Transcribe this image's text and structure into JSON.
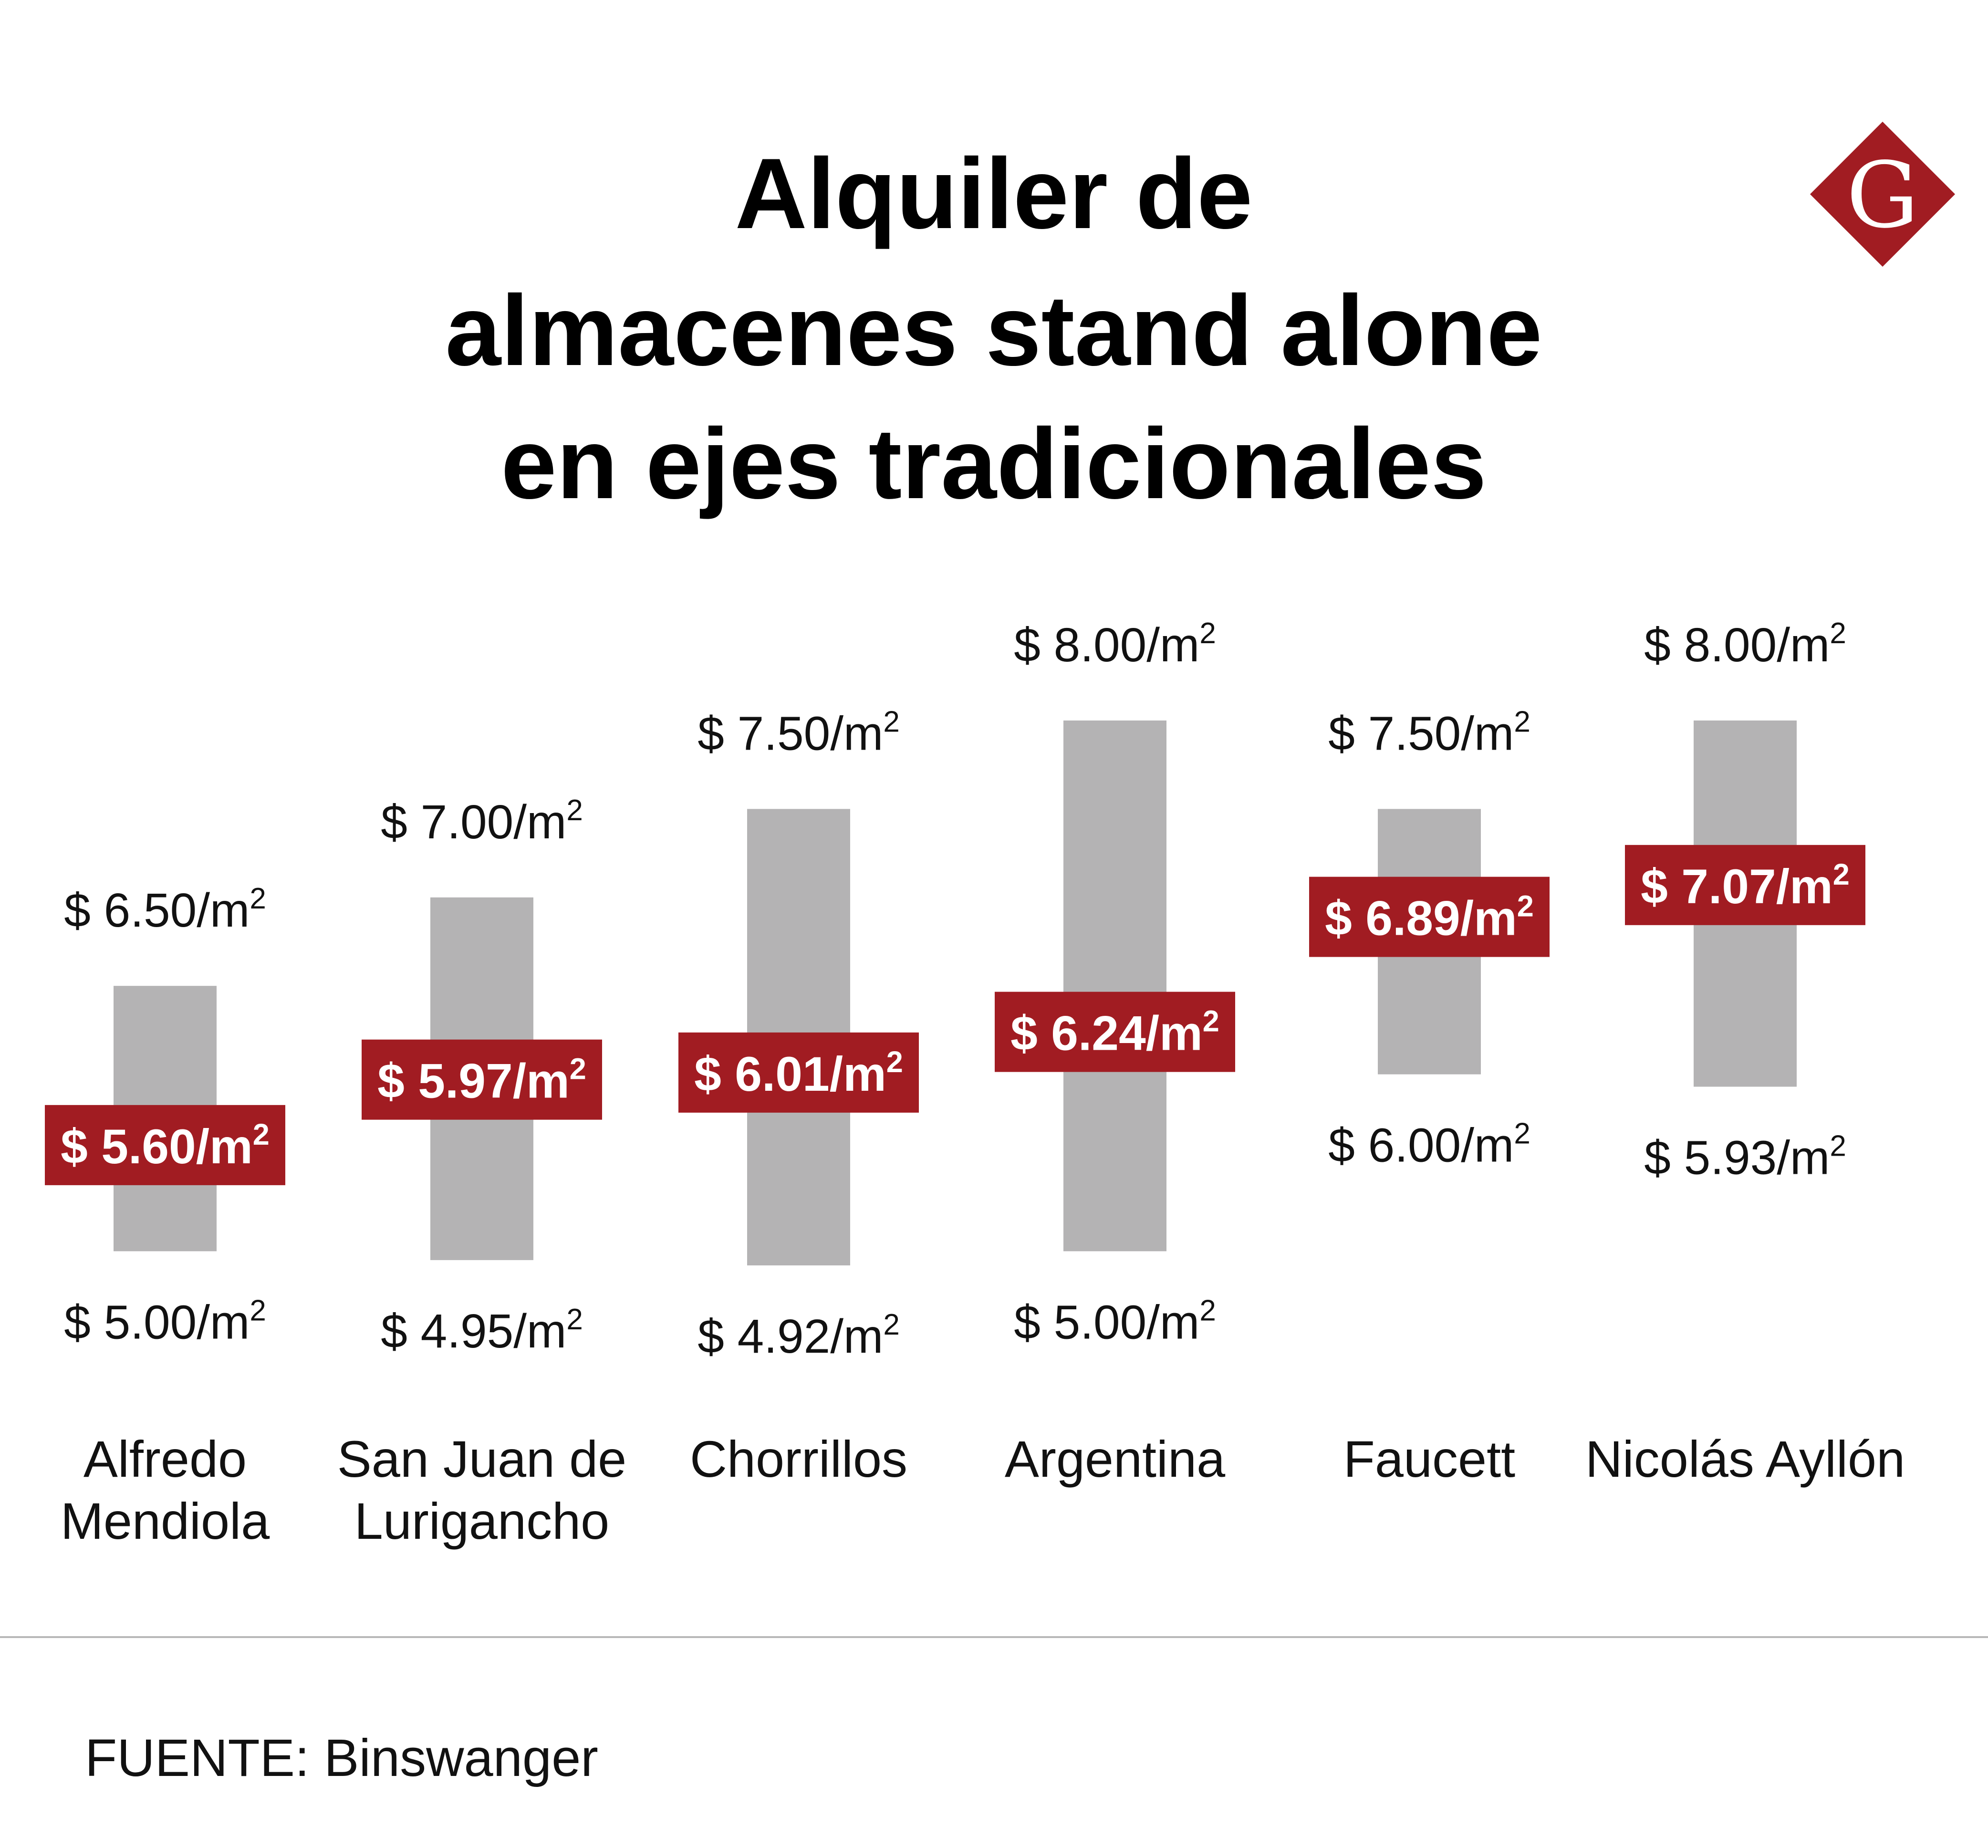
{
  "chart_data": {
    "type": "range_bar",
    "title_lines": [
      "Alquiler de",
      "almacenes stand alone",
      "en ejes tradicionales"
    ],
    "unit_prefix": "$ ",
    "unit_suffix": "/m",
    "unit_exponent": "2",
    "categories": [
      [
        "Alfredo",
        "Mendiola"
      ],
      [
        "San Juan de",
        "Lurigancho"
      ],
      [
        "Chorrillos"
      ],
      [
        "Argentina"
      ],
      [
        "Faucett"
      ],
      [
        "Nicolás Ayllón"
      ]
    ],
    "min": [
      "5.00",
      "4.95",
      "4.92",
      "5.00",
      "6.00",
      "5.93"
    ],
    "max": [
      "6.50",
      "7.00",
      "7.50",
      "8.00",
      "7.50",
      "8.00"
    ],
    "avg": [
      "5.60",
      "5.97",
      "6.01",
      "6.24",
      "6.89",
      "7.07"
    ],
    "source": "FUENTE: Binswanger"
  },
  "colors": {
    "bar": "#b4b3b4",
    "avg_box": "#a11c22",
    "avg_text": "#ffffff",
    "text": "#111111",
    "divider": "#b8b8b8",
    "logo": "#a11c22"
  },
  "logo": {
    "icon": "diamond-g-logo",
    "letter": "G"
  }
}
